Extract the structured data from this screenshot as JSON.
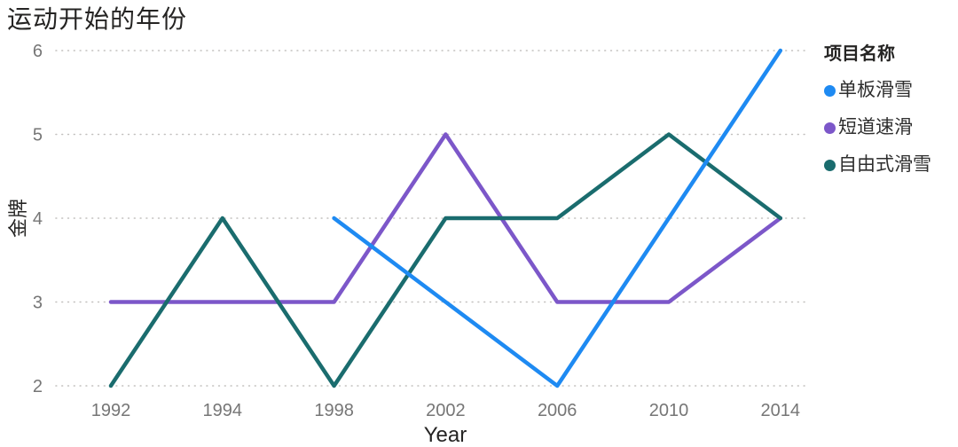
{
  "title": "运动开始的年份",
  "chart_data": {
    "type": "line",
    "title": "运动开始的年份",
    "xlabel": "Year",
    "ylabel": "金牌",
    "categories": [
      "1992",
      "1994",
      "1998",
      "2002",
      "2006",
      "2010",
      "2014"
    ],
    "series": [
      {
        "name": "单板滑雪",
        "color": "#1E8AF2",
        "values": [
          null,
          null,
          4,
          3,
          2,
          4,
          6
        ]
      },
      {
        "name": "短道速滑",
        "color": "#7C57C9",
        "values": [
          3,
          3,
          3,
          5,
          3,
          3,
          4
        ]
      },
      {
        "name": "自由式滑雪",
        "color": "#1A6C6E",
        "values": [
          2,
          4,
          2,
          4,
          4,
          5,
          4
        ]
      }
    ],
    "ylim": [
      2,
      6
    ],
    "yticks": [
      2,
      3,
      4,
      5,
      6
    ],
    "grid": "horizontal-dotted",
    "legend_title": "项目名称",
    "legend_position": "right"
  },
  "colors": {
    "title_text": "#252423",
    "axis_label_text": "#252423",
    "tick_text": "#767676",
    "gridline": "#C2C0BE",
    "legend_text": "#2E2E2E"
  }
}
